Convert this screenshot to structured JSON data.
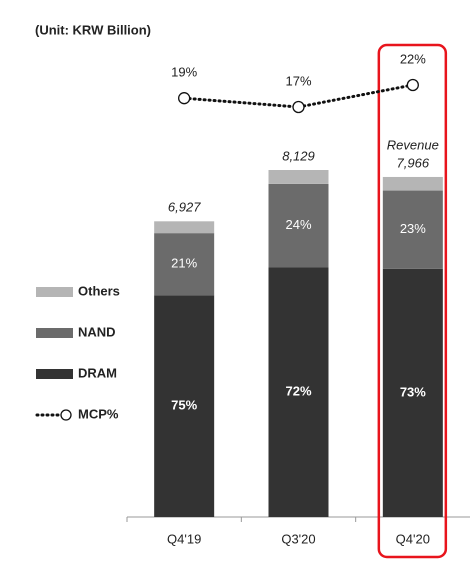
{
  "chart_data": {
    "type": "stacked-bar",
    "subtitle": "(Unit: KRW Billion)",
    "categories": [
      "Q4'19",
      "Q3'20",
      "Q4'20"
    ],
    "totals": {
      "name": "Revenue",
      "values": [
        6927,
        8129,
        7966
      ],
      "value_labels": [
        "6,927",
        "8,129",
        "7,966"
      ]
    },
    "series": [
      {
        "name": "DRAM",
        "color": "#333333",
        "values": [
          75,
          72,
          73
        ],
        "value_labels": [
          "75%",
          "72%",
          "73%"
        ]
      },
      {
        "name": "NAND",
        "color": "#6b6b6b",
        "values": [
          21,
          24,
          23
        ],
        "value_labels": [
          "21%",
          "24%",
          "23%"
        ]
      },
      {
        "name": "Others",
        "color": "#b5b5b5",
        "values": [
          4,
          4,
          4
        ]
      }
    ],
    "line": {
      "name": "MCP%",
      "color": "#111111",
      "values": [
        19,
        17,
        22
      ],
      "value_labels": [
        "19%",
        "17%",
        "22%"
      ]
    },
    "highlight": 2
  }
}
